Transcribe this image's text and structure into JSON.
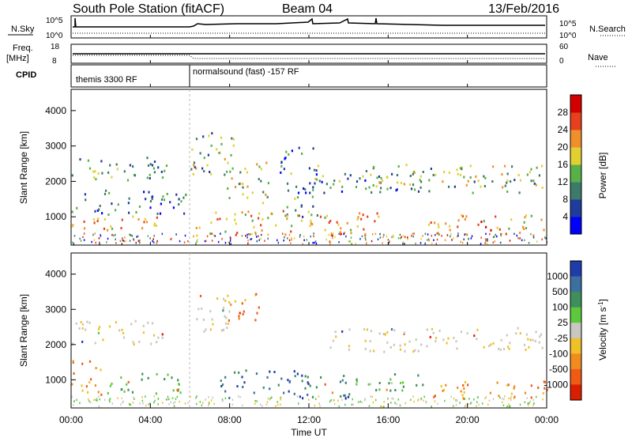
{
  "header": {
    "station": "South Pole Station (fitACF)",
    "beam": "Beam 04",
    "date": "13/Feb/2016"
  },
  "top_panels": {
    "nsky_label": "N.Sky",
    "nsearch_label": "N.Search",
    "noise_ticks_left": [
      "10^5",
      "10^0"
    ],
    "noise_ticks_right": [
      "10^5",
      "10^0"
    ],
    "freq_label": "Freq.",
    "freq_unit": "[MHz]",
    "freq_ticks": [
      "18",
      "8"
    ],
    "nave_label": "Nave",
    "nave_ticks": [
      "60",
      "0"
    ],
    "cpid_label": "CPID",
    "cpid_modes": [
      {
        "name": "themis 3300 RF",
        "start_hour": 0.0
      },
      {
        "name": "normalsound (fast) -157 RF",
        "start_hour": 6.0
      }
    ]
  },
  "chart_data": [
    {
      "type": "heatmap",
      "title": "",
      "ylabel": "Slant Range [km]",
      "xlabel": "",
      "xlim_hours": [
        0,
        24
      ],
      "ylim": [
        200,
        4600
      ],
      "yticks": [
        1000,
        2000,
        3000,
        4000
      ],
      "colorbar": {
        "label": "Power [dB]",
        "ticks": [
          "4",
          "8",
          "12",
          "16",
          "20",
          "24",
          "28"
        ],
        "range": [
          0,
          30
        ],
        "colors": [
          "#0000ff",
          "#1e3c9c",
          "#3c7a6a",
          "#58b048",
          "#e2d032",
          "#f0902a",
          "#e8401e",
          "#d40000"
        ]
      },
      "echo_regions": [
        {
          "t0": 0.0,
          "t1": 4.8,
          "r0": 2000,
          "r1": 2700,
          "value": 11
        },
        {
          "t0": 0.0,
          "t1": 5.2,
          "r0": 650,
          "r1": 1100,
          "value": 18
        },
        {
          "t0": 0.0,
          "t1": 5.8,
          "r0": 1100,
          "r1": 1800,
          "value": 8
        },
        {
          "t0": 6.0,
          "t1": 8.2,
          "r0": 2200,
          "r1": 3500,
          "value": 13
        },
        {
          "t0": 7.8,
          "t1": 10.0,
          "r0": 1400,
          "r1": 2600,
          "value": 16
        },
        {
          "t0": 6.2,
          "t1": 15.5,
          "r0": 500,
          "r1": 1200,
          "value": 19
        },
        {
          "t0": 12.0,
          "t1": 18.0,
          "r0": 1700,
          "r1": 2300,
          "value": 10
        },
        {
          "t0": 14.5,
          "t1": 24.0,
          "r0": 1700,
          "r1": 2500,
          "value": 14
        },
        {
          "t0": 18.0,
          "t1": 24.0,
          "r0": 500,
          "r1": 1100,
          "value": 20
        },
        {
          "t0": 10.5,
          "t1": 12.5,
          "r0": 1000,
          "r1": 3000,
          "value": 9
        }
      ]
    },
    {
      "type": "heatmap",
      "title": "",
      "ylabel": "Slant Range [km]",
      "xlabel": "Time UT",
      "xlim_hours": [
        0,
        24
      ],
      "ylim": [
        200,
        4600
      ],
      "yticks": [
        1000,
        2000,
        3000,
        4000
      ],
      "xticks": [
        "00:00",
        "04:00",
        "08:00",
        "12:00",
        "16:00",
        "20:00",
        "00:00"
      ],
      "colorbar": {
        "label": "Velocity [m s^-1]",
        "unit_superscript": "-1",
        "ticks": [
          "1000",
          "500",
          "100",
          "25",
          "-25",
          "-100",
          "-500",
          "-1000"
        ],
        "colors": [
          "#1e3caa",
          "#3c70a0",
          "#3f8f5a",
          "#5cc83c",
          "#c8c8c0",
          "#f0c028",
          "#f08c1e",
          "#f05a14",
          "#dc1e00"
        ]
      },
      "echo_regions": [
        {
          "t0": 0.0,
          "t1": 4.8,
          "r0": 2000,
          "r1": 2700,
          "value": "gray"
        },
        {
          "t0": 0.0,
          "t1": 1.5,
          "r0": 600,
          "r1": 1600,
          "value": "orange"
        },
        {
          "t0": 1.5,
          "t1": 5.5,
          "r0": 600,
          "r1": 1200,
          "value": "green"
        },
        {
          "t0": 6.2,
          "t1": 8.0,
          "r0": 2300,
          "r1": 3500,
          "value": "gray"
        },
        {
          "t0": 7.8,
          "t1": 9.5,
          "r0": 2600,
          "r1": 3500,
          "value": "orange"
        },
        {
          "t0": 7.5,
          "t1": 14.0,
          "r0": 500,
          "r1": 1300,
          "value": "blue"
        },
        {
          "t0": 14.0,
          "t1": 18.0,
          "r0": 700,
          "r1": 1200,
          "value": "green"
        },
        {
          "t0": 13.0,
          "t1": 24.0,
          "r0": 1800,
          "r1": 2500,
          "value": "gray"
        },
        {
          "t0": 18.0,
          "t1": 24.0,
          "r0": 500,
          "r1": 1000,
          "value": "orange"
        }
      ]
    }
  ]
}
